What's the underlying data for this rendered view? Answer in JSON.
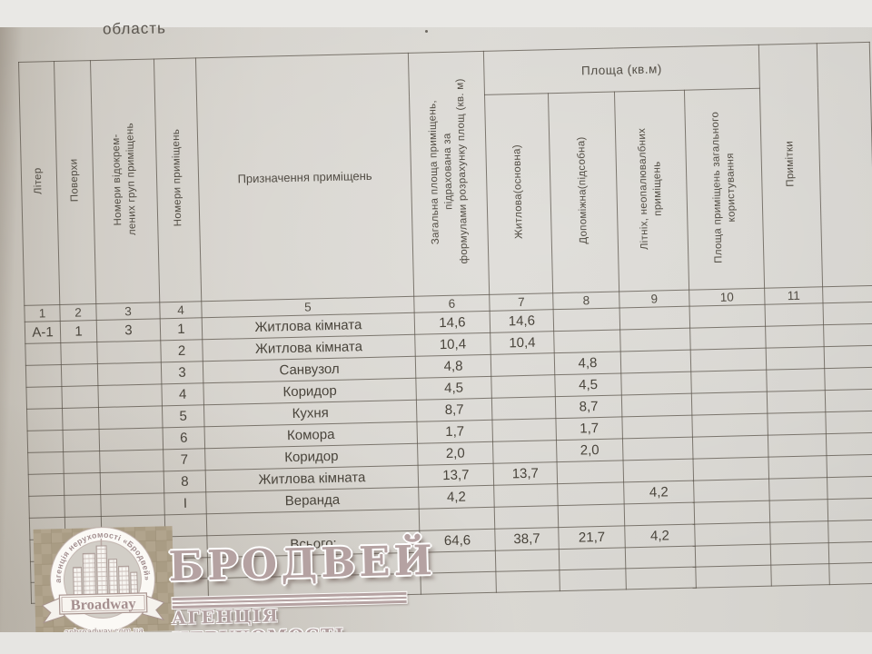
{
  "document": {
    "top_partial_text": "область",
    "colors": {
      "paper": "#d6d3cd",
      "page_margin_gray": "#e9e8e5",
      "table_line": "#564f45",
      "ink": "#4b463d",
      "watermark_mauve": "#b5a2a2",
      "checker_tan": "#b1a48d"
    }
  },
  "table": {
    "group_header": "Площа (кв.м)",
    "headers": [
      "Літер",
      "Поверхи",
      "Номери відокрем-\nлених груп приміщень",
      "Номери приміщень",
      "Призначення приміщень",
      "Загальна площа приміщень, підрахована за\nформулами розрахунку площ (кв. м)",
      "Житлова(основна)",
      "Допоміжна(підсобна)",
      "Літніх, неопалювалбних\nприміщень",
      "Площа приміщень загального\nкористування",
      "Примітки"
    ],
    "column_numbers": [
      "1",
      "2",
      "3",
      "4",
      "5",
      "6",
      "7",
      "8",
      "9",
      "10",
      "11"
    ],
    "rows": [
      [
        "А-1",
        "1",
        "3",
        "1",
        "Житлова кімната",
        "14,6",
        "14,6",
        "",
        "",
        "",
        ""
      ],
      [
        "",
        "",
        "",
        "2",
        "Житлова кімната",
        "10,4",
        "10,4",
        "",
        "",
        "",
        ""
      ],
      [
        "",
        "",
        "",
        "3",
        "Санвузол",
        "4,8",
        "",
        "4,8",
        "",
        "",
        ""
      ],
      [
        "",
        "",
        "",
        "4",
        "Коридор",
        "4,5",
        "",
        "4,5",
        "",
        "",
        ""
      ],
      [
        "",
        "",
        "",
        "5",
        "Кухня",
        "8,7",
        "",
        "8,7",
        "",
        "",
        ""
      ],
      [
        "",
        "",
        "",
        "6",
        "Комора",
        "1,7",
        "",
        "1,7",
        "",
        "",
        ""
      ],
      [
        "",
        "",
        "",
        "7",
        "Коридор",
        "2,0",
        "",
        "2,0",
        "",
        "",
        ""
      ],
      [
        "",
        "",
        "",
        "8",
        "Житлова кімната",
        "13,7",
        "13,7",
        "",
        "",
        "",
        ""
      ],
      [
        "",
        "",
        "",
        "I",
        "Веранда",
        "4,2",
        "",
        "",
        "4,2",
        "",
        ""
      ],
      [
        "",
        "",
        "",
        "",
        "",
        "",
        "",
        "",
        "",
        "",
        ""
      ],
      [
        "",
        "",
        "",
        "",
        "Всього:",
        "64,6",
        "38,7",
        "21,7",
        "4,2",
        "",
        ""
      ],
      [
        "",
        "",
        "",
        "",
        "",
        "",
        "",
        "",
        "",
        "",
        ""
      ],
      [
        "",
        "",
        "",
        "",
        "",
        "",
        "",
        "",
        "",
        "",
        ""
      ]
    ]
  },
  "watermark": {
    "big_title": "БРОДВЕЙ",
    "subtitle": "АГЕНЦІЯ НЕРУХОМОСТІ",
    "emblem_arc_text": "агенція нерухомості «Бродвей»",
    "emblem_banner": "Broadway",
    "emblem_url": "anbroadway.com.ua"
  }
}
